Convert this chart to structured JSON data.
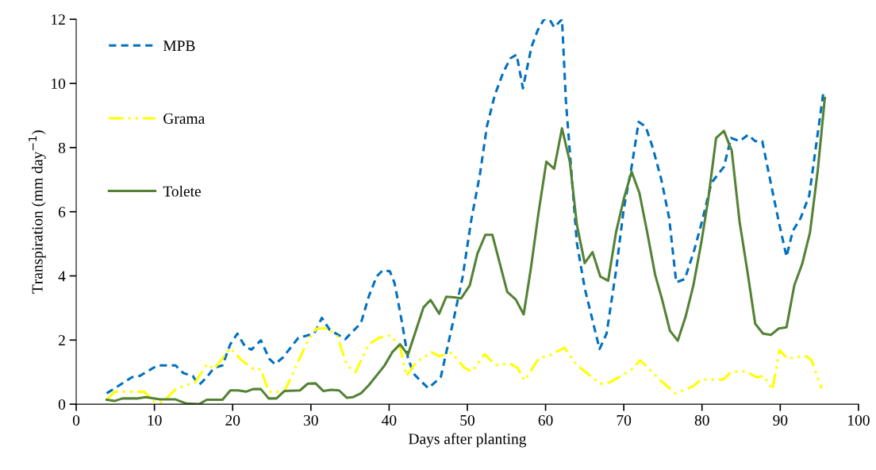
{
  "chart_data": {
    "type": "line",
    "xlabel": "Days after planting",
    "ylabel": "Transpiration (mm day$^{−1}$)",
    "xlim": [
      0,
      100
    ],
    "xticks": [
      0,
      10,
      20,
      30,
      40,
      50,
      60,
      70,
      80,
      90,
      100
    ],
    "ylim": [
      0,
      12
    ],
    "yticks": [
      0,
      2,
      4,
      6,
      8,
      10,
      12
    ],
    "grid": false,
    "legend": "top left",
    "marker": "none",
    "series": [
      {
        "name": "MPB",
        "color": "#0070c0",
        "line_style": "dashed",
        "x": [
          3.9,
          6.1,
          7.1,
          8.1,
          10.4,
          12.7,
          13.7,
          14.9,
          15.7,
          16.7,
          17.6,
          18.7,
          19.7,
          20.6,
          21.6,
          22.4,
          23.6,
          24.7,
          25.4,
          26.4,
          28.4,
          30.4,
          31.4,
          32.4,
          34.4,
          36.4,
          37.4,
          38.4,
          39.2,
          40.1,
          40.7,
          41.6,
          42.4,
          43.1,
          44.1,
          45.0,
          46.6,
          48.3,
          49.4,
          50.5,
          51.6,
          52.5,
          53.5,
          54.6,
          55.5,
          56.3,
          57.1,
          58.2,
          59.0,
          59.8,
          60.5,
          61.1,
          62.1,
          62.6,
          64.0,
          65.0,
          66.9,
          67.8,
          69.0,
          70.0,
          71.0,
          71.9,
          72.8,
          73.7,
          74.8,
          75.8,
          76.7,
          77.8,
          79.0,
          80.0,
          81.2,
          82.8,
          83.7,
          84.8,
          85.9,
          86.8,
          87.7,
          88.7,
          89.8,
          90.8,
          91.6,
          92.6,
          93.7,
          95.5
        ],
        "values": [
          0.34,
          0.68,
          0.84,
          0.88,
          1.21,
          1.21,
          0.97,
          0.88,
          0.6,
          0.84,
          1.13,
          1.21,
          1.87,
          2.2,
          1.79,
          1.7,
          1.99,
          1.41,
          1.25,
          1.45,
          2.07,
          2.2,
          2.69,
          2.32,
          2.03,
          2.53,
          3.36,
          3.98,
          4.18,
          4.14,
          3.77,
          2.61,
          1.46,
          0.96,
          0.71,
          0.5,
          0.84,
          2.7,
          3.97,
          5.74,
          7.15,
          8.66,
          9.63,
          10.35,
          10.78,
          10.9,
          9.85,
          11.14,
          11.66,
          12.0,
          12.0,
          11.75,
          12.0,
          9.45,
          5.03,
          3.62,
          1.72,
          2.2,
          4.15,
          6.1,
          7.4,
          8.8,
          8.65,
          8.0,
          7.0,
          5.8,
          3.8,
          3.9,
          4.8,
          5.7,
          6.9,
          7.4,
          8.3,
          8.2,
          8.4,
          8.2,
          8.2,
          7.0,
          5.7,
          4.6,
          5.4,
          5.8,
          6.5,
          9.7
        ]
      },
      {
        "name": "Grama",
        "color": "#ffff00",
        "line_style": "dashdot",
        "x": [
          3.9,
          4.9,
          8.7,
          10.1,
          11.1,
          12.7,
          14.1,
          15.2,
          16.7,
          17.6,
          19.7,
          21.1,
          22.7,
          23.6,
          24.6,
          26.6,
          27.7,
          29.6,
          30.7,
          32.2,
          33.4,
          34.6,
          35.7,
          37.4,
          38.7,
          40.2,
          41.4,
          42.2,
          43.4,
          45.4,
          46.4,
          48.0,
          49.6,
          50.6,
          52.2,
          53.6,
          55.4,
          56.4,
          57.3,
          59.2,
          60.3,
          62.4,
          64.0,
          67.0,
          68.2,
          70.9,
          72.1,
          74.8,
          76.6,
          78.8,
          79.9,
          82.7,
          83.8,
          85.6,
          87.0,
          87.9,
          89.0,
          89.9,
          90.9,
          93.3,
          94.0,
          95.3
        ],
        "values": [
          0.14,
          0.39,
          0.39,
          0.06,
          0.06,
          0.47,
          0.6,
          0.68,
          1.25,
          1.09,
          1.75,
          1.38,
          1.09,
          1.09,
          0.39,
          0.39,
          0.96,
          1.99,
          2.36,
          2.36,
          2.11,
          1.21,
          1.0,
          1.87,
          2.07,
          2.15,
          1.79,
          0.88,
          1.29,
          1.62,
          1.5,
          1.6,
          1.14,
          1.01,
          1.56,
          1.22,
          1.27,
          1.14,
          0.74,
          1.45,
          1.5,
          1.76,
          1.22,
          0.64,
          0.68,
          1.06,
          1.37,
          0.72,
          0.34,
          0.55,
          0.77,
          0.77,
          1.02,
          1.02,
          0.84,
          0.88,
          0.45,
          1.69,
          1.42,
          1.5,
          1.37,
          0.49
        ]
      },
      {
        "name": "Tolete",
        "color": "#548235",
        "line_style": "solid",
        "x": [
          3.9,
          4.9,
          5.9,
          7.9,
          8.9,
          10.7,
          12.7,
          14.1,
          15.7,
          16.7,
          18.7,
          19.7,
          20.7,
          21.7,
          22.6,
          23.6,
          24.6,
          25.6,
          26.6,
          28.6,
          29.6,
          30.6,
          31.6,
          32.6,
          33.6,
          34.6,
          35.4,
          36.4,
          37.4,
          39.4,
          40.4,
          41.4,
          42.4,
          44.4,
          45.3,
          46.4,
          47.3,
          48.3,
          49.2,
          50.3,
          51.3,
          52.3,
          53.2,
          55.1,
          56.2,
          57.2,
          58.1,
          59.1,
          60.1,
          61.1,
          62.1,
          63.1,
          64.0,
          65.0,
          66.0,
          67.0,
          68.0,
          69.0,
          70.0,
          71.0,
          72.0,
          73.0,
          74.0,
          74.9,
          75.9,
          76.9,
          77.9,
          78.9,
          79.9,
          80.8,
          81.8,
          82.8,
          83.8,
          84.8,
          85.8,
          86.8,
          87.8,
          88.8,
          89.8,
          90.8,
          91.8,
          92.8,
          93.8,
          94.8,
          95.7
        ],
        "values": [
          0.14,
          0.1,
          0.18,
          0.18,
          0.22,
          0.15,
          0.15,
          0.02,
          0.0,
          0.14,
          0.14,
          0.43,
          0.43,
          0.39,
          0.47,
          0.47,
          0.18,
          0.18,
          0.41,
          0.43,
          0.64,
          0.65,
          0.41,
          0.45,
          0.43,
          0.2,
          0.22,
          0.34,
          0.59,
          1.2,
          1.62,
          1.87,
          1.54,
          3.02,
          3.25,
          2.82,
          3.35,
          3.33,
          3.3,
          3.7,
          4.7,
          5.28,
          5.28,
          3.5,
          3.26,
          2.8,
          4.2,
          5.97,
          7.56,
          7.34,
          8.6,
          7.56,
          5.6,
          4.4,
          4.74,
          3.98,
          3.85,
          5.35,
          6.4,
          7.25,
          6.58,
          5.35,
          4.04,
          3.26,
          2.29,
          1.98,
          2.73,
          3.71,
          5.03,
          6.4,
          8.3,
          8.52,
          7.9,
          5.69,
          4.14,
          2.51,
          2.2,
          2.16,
          2.36,
          2.4,
          3.71,
          4.37,
          5.35,
          7.3,
          9.55
        ]
      }
    ]
  }
}
